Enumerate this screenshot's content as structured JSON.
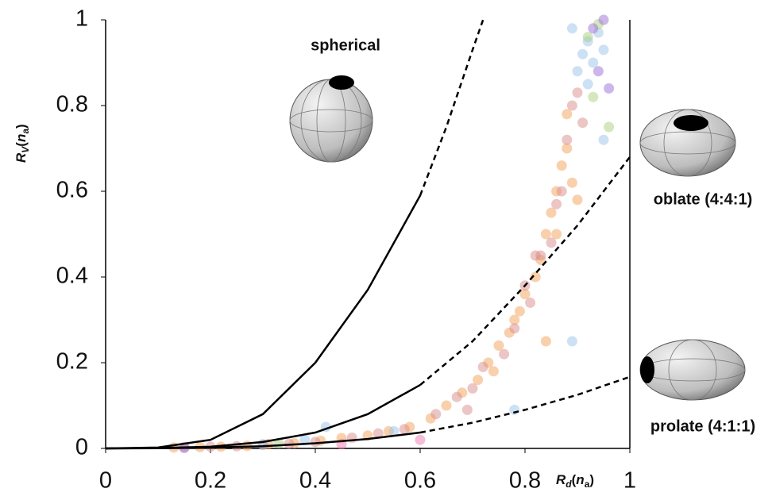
{
  "chart_data": {
    "type": "scatter",
    "xlim": [
      0,
      1
    ],
    "ylim": [
      0,
      1
    ],
    "xticks": [
      0,
      0.2,
      0.4,
      0.6,
      0.8,
      1
    ],
    "yticks": [
      0,
      0.2,
      0.4,
      0.6,
      0.8,
      1
    ],
    "xlabel": {
      "main": "R",
      "sub": "d",
      "open": "(",
      "arg": "n",
      "argsub": "a",
      "close": ")"
    },
    "ylabel": {
      "main": "R",
      "sub": "V",
      "open": "(",
      "arg": "n",
      "argsub": "a",
      "close": ")"
    },
    "annotations": [
      "spherical",
      "oblate (4:4:1)",
      "prolate (4:1:1)"
    ],
    "solid_until_x": 0.6,
    "curves": [
      {
        "color": "#000000",
        "x": [
          0,
          0.1,
          0.2,
          0.3,
          0.4,
          0.5,
          0.6,
          0.65,
          0.7,
          0.72
        ],
        "values": [
          0,
          0.002,
          0.02,
          0.08,
          0.2,
          0.37,
          0.59,
          0.75,
          0.93,
          1.0
        ]
      },
      {
        "color": "#000000",
        "x": [
          0,
          0.1,
          0.2,
          0.3,
          0.4,
          0.5,
          0.6,
          0.7,
          0.8,
          0.9,
          1
        ],
        "values": [
          0,
          0.001,
          0.004,
          0.015,
          0.037,
          0.08,
          0.148,
          0.25,
          0.38,
          0.52,
          0.68
        ]
      },
      {
        "color": "#000000",
        "x": [
          0,
          0.1,
          0.2,
          0.3,
          0.4,
          0.5,
          0.6,
          0.7,
          0.8,
          0.9,
          1
        ],
        "values": [
          0,
          0.0005,
          0.002,
          0.005,
          0.012,
          0.022,
          0.037,
          0.06,
          0.09,
          0.125,
          0.167
        ]
      }
    ],
    "scatter_groups": [
      {
        "color": "#f4a259",
        "x": [
          0.13,
          0.18,
          0.22,
          0.27,
          0.31,
          0.36,
          0.41,
          0.45,
          0.5,
          0.54,
          0.58,
          0.62,
          0.65,
          0.68,
          0.71,
          0.73,
          0.75,
          0.77,
          0.79,
          0.8,
          0.82,
          0.83,
          0.84,
          0.85,
          0.86,
          0.87,
          0.88,
          0.88,
          0.89,
          0.9,
          0.84,
          0.78,
          0.74,
          0.86
        ],
        "values": [
          0.002,
          0.003,
          0.004,
          0.006,
          0.01,
          0.012,
          0.018,
          0.024,
          0.03,
          0.04,
          0.05,
          0.07,
          0.1,
          0.13,
          0.16,
          0.2,
          0.24,
          0.27,
          0.32,
          0.36,
          0.4,
          0.44,
          0.5,
          0.55,
          0.6,
          0.66,
          0.7,
          0.78,
          0.62,
          0.58,
          0.25,
          0.3,
          0.18,
          0.5
        ]
      },
      {
        "color": "#d98c8c",
        "x": [
          0.15,
          0.2,
          0.25,
          0.3,
          0.35,
          0.4,
          0.47,
          0.52,
          0.57,
          0.63,
          0.67,
          0.7,
          0.72,
          0.76,
          0.78,
          0.81,
          0.83,
          0.85,
          0.86,
          0.87,
          0.88,
          0.89,
          0.9,
          0.91,
          0.82,
          0.8,
          0.69
        ],
        "values": [
          0.003,
          0.004,
          0.005,
          0.008,
          0.011,
          0.015,
          0.025,
          0.035,
          0.045,
          0.08,
          0.12,
          0.14,
          0.19,
          0.22,
          0.28,
          0.34,
          0.45,
          0.48,
          0.57,
          0.6,
          0.72,
          0.8,
          0.83,
          0.76,
          0.45,
          0.38,
          0.09
        ]
      },
      {
        "color": "#9cc3ea",
        "x": [
          0.3,
          0.38,
          0.42,
          0.55,
          0.9,
          0.91,
          0.92,
          0.93,
          0.94,
          0.92,
          0.95,
          0.89,
          0.78,
          0.89,
          0.95
        ],
        "values": [
          0.01,
          0.02,
          0.05,
          0.04,
          0.88,
          0.92,
          0.95,
          0.9,
          0.97,
          0.85,
          0.93,
          0.98,
          0.09,
          0.25,
          0.72
        ]
      },
      {
        "color": "#a9cf7c",
        "x": [
          0.33,
          0.92,
          0.94,
          0.93,
          0.96
        ],
        "values": [
          0.012,
          0.96,
          0.99,
          0.82,
          0.75
        ]
      },
      {
        "color": "#9b6fd6",
        "x": [
          0.15,
          0.93,
          0.95,
          0.94,
          0.96
        ],
        "values": [
          0.001,
          0.98,
          1.0,
          0.88,
          0.84
        ]
      },
      {
        "color": "#f07ab0",
        "x": [
          0.6,
          0.45
        ],
        "values": [
          0.02,
          0.01
        ]
      }
    ]
  }
}
